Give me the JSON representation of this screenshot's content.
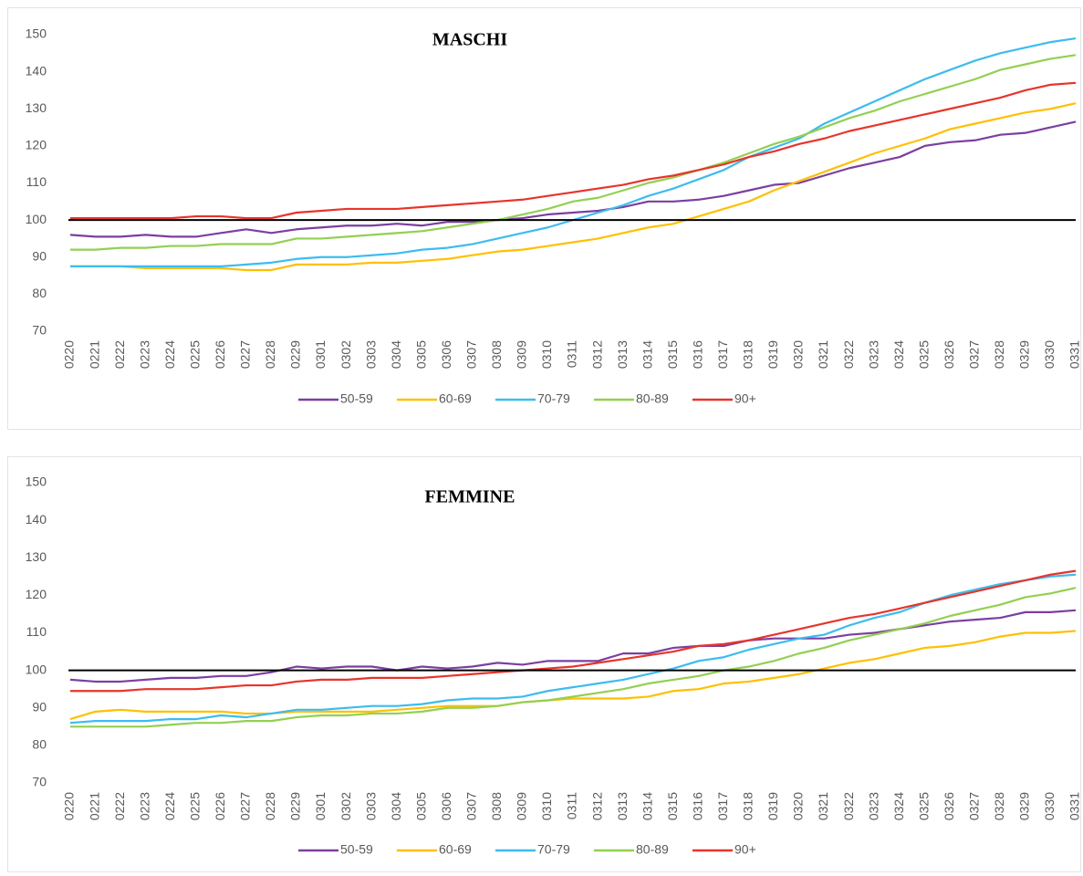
{
  "chart_data": [
    {
      "type": "line",
      "title": "MASCHI",
      "categories": [
        "0220",
        "0221",
        "0222",
        "0223",
        "0224",
        "0225",
        "0226",
        "0227",
        "0228",
        "0229",
        "0301",
        "0302",
        "0303",
        "0304",
        "0305",
        "0306",
        "0307",
        "0308",
        "0309",
        "0310",
        "0311",
        "0312",
        "0313",
        "0314",
        "0315",
        "0316",
        "0317",
        "0318",
        "0319",
        "0320",
        "0321",
        "0322",
        "0323",
        "0324",
        "0325",
        "0326",
        "0327",
        "0328",
        "0329",
        "0330",
        "0331"
      ],
      "ylim": [
        70,
        150
      ],
      "yticks": [
        70,
        80,
        90,
        100,
        110,
        120,
        130,
        140,
        150
      ],
      "hline": 100,
      "legend": "bottom",
      "series": [
        {
          "name": "50-59",
          "color": "#7b3fa0",
          "values": [
            96,
            95.5,
            95.5,
            96,
            95.5,
            95.5,
            96.5,
            97.5,
            96.5,
            97.5,
            98,
            98.5,
            98.5,
            99,
            98.5,
            99.5,
            99.5,
            100,
            100.5,
            101.5,
            102,
            102.5,
            103.5,
            105,
            105,
            105.5,
            106.5,
            108,
            109.5,
            110,
            112,
            114,
            115.5,
            117,
            120,
            121,
            121.5,
            123,
            123.5,
            125,
            126.5
          ]
        },
        {
          "name": "60-69",
          "color": "#ffc000",
          "values": [
            87.5,
            87.5,
            87.5,
            87,
            87,
            87,
            87,
            86.5,
            86.5,
            88,
            88,
            88,
            88.5,
            88.5,
            89,
            89.5,
            90.5,
            91.5,
            92,
            93,
            94,
            95,
            96.5,
            98,
            99,
            101,
            103,
            105,
            108,
            110.5,
            113,
            115.5,
            118,
            120,
            122,
            124.5,
            126,
            127.5,
            129,
            130,
            131.5
          ]
        },
        {
          "name": "70-79",
          "color": "#3cbcf0",
          "values": [
            87.5,
            87.5,
            87.5,
            87.5,
            87.5,
            87.5,
            87.5,
            88,
            88.5,
            89.5,
            90,
            90,
            90.5,
            91,
            92,
            92.5,
            93.5,
            95,
            96.5,
            98,
            100,
            102,
            104,
            106.5,
            108.5,
            111,
            113.5,
            117,
            119.5,
            122,
            126,
            129,
            132,
            135,
            138,
            140.5,
            143,
            145,
            146.5,
            148,
            149
          ]
        },
        {
          "name": "80-89",
          "color": "#92d050",
          "values": [
            92,
            92,
            92.5,
            92.5,
            93,
            93,
            93.5,
            93.5,
            93.5,
            95,
            95,
            95.5,
            96,
            96.5,
            97,
            98,
            99,
            100,
            101.5,
            103,
            105,
            106,
            108,
            110,
            111.5,
            113.5,
            115.5,
            118,
            120.5,
            122.5,
            125,
            127.5,
            129.5,
            132,
            134,
            136,
            138,
            140.5,
            142,
            143.5,
            144.5
          ]
        },
        {
          "name": "90+",
          "color": "#e8342a",
          "values": [
            100.5,
            100.5,
            100.5,
            100.5,
            100.5,
            101,
            101,
            100.5,
            100.5,
            102,
            102.5,
            103,
            103,
            103,
            103.5,
            104,
            104.5,
            105,
            105.5,
            106.5,
            107.5,
            108.5,
            109.5,
            111,
            112,
            113.5,
            115,
            117,
            118.5,
            120.5,
            122,
            124,
            125.5,
            127,
            128.5,
            130,
            131.5,
            133,
            135,
            136.5,
            137
          ]
        }
      ]
    },
    {
      "type": "line",
      "title": "FEMMINE",
      "categories": [
        "0220",
        "0221",
        "0222",
        "0223",
        "0224",
        "0225",
        "0226",
        "0227",
        "0228",
        "0229",
        "0301",
        "0302",
        "0303",
        "0304",
        "0305",
        "0306",
        "0307",
        "0308",
        "0309",
        "0310",
        "0311",
        "0312",
        "0313",
        "0314",
        "0315",
        "0316",
        "0317",
        "0318",
        "0319",
        "0320",
        "0321",
        "0322",
        "0323",
        "0324",
        "0325",
        "0326",
        "0327",
        "0328",
        "0329",
        "0330",
        "0331"
      ],
      "ylim": [
        70,
        150
      ],
      "yticks": [
        70,
        80,
        90,
        100,
        110,
        120,
        130,
        140,
        150
      ],
      "hline": 100,
      "legend": "bottom",
      "series": [
        {
          "name": "50-59",
          "color": "#7b3fa0",
          "values": [
            97.5,
            97,
            97,
            97.5,
            98,
            98,
            98.5,
            98.5,
            99.5,
            101,
            100.5,
            101,
            101,
            100,
            101,
            100.5,
            101,
            102,
            101.5,
            102.5,
            102.5,
            102.5,
            104.5,
            104.5,
            106,
            106.5,
            106.5,
            108,
            108.5,
            108.5,
            108.5,
            109.5,
            110,
            111,
            112,
            113,
            113.5,
            114,
            115.5,
            115.5,
            116
          ]
        },
        {
          "name": "60-69",
          "color": "#ffc000",
          "values": [
            87,
            89,
            89.5,
            89,
            89,
            89,
            89,
            88.5,
            88.5,
            89,
            89,
            89,
            89,
            89.5,
            90,
            90.5,
            90.5,
            90.5,
            91.5,
            92,
            92.5,
            92.5,
            92.5,
            93,
            94.5,
            95,
            96.5,
            97,
            98,
            99,
            100.5,
            102,
            103,
            104.5,
            106,
            106.5,
            107.5,
            109,
            110,
            110,
            110.5
          ]
        },
        {
          "name": "70-79",
          "color": "#3cbcf0",
          "values": [
            86,
            86.5,
            86.5,
            86.5,
            87,
            87,
            88,
            87.5,
            88.5,
            89.5,
            89.5,
            90,
            90.5,
            90.5,
            91,
            92,
            92.5,
            92.5,
            93,
            94.5,
            95.5,
            96.5,
            97.5,
            99,
            100.5,
            102.5,
            103.5,
            105.5,
            107,
            108.5,
            109.5,
            112,
            114,
            115.5,
            118,
            120,
            121.5,
            123,
            124,
            125,
            125.5
          ]
        },
        {
          "name": "80-89",
          "color": "#92d050",
          "values": [
            85,
            85,
            85,
            85,
            85.5,
            86,
            86,
            86.5,
            86.5,
            87.5,
            88,
            88,
            88.5,
            88.5,
            89,
            90,
            90,
            90.5,
            91.5,
            92,
            93,
            94,
            95,
            96.5,
            97.5,
            98.5,
            100,
            101,
            102.5,
            104.5,
            106,
            108,
            109.5,
            111,
            112.5,
            114.5,
            116,
            117.5,
            119.5,
            120.5,
            122
          ]
        },
        {
          "name": "90+",
          "color": "#e8342a",
          "values": [
            94.5,
            94.5,
            94.5,
            95,
            95,
            95,
            95.5,
            96,
            96,
            97,
            97.5,
            97.5,
            98,
            98,
            98,
            98.5,
            99,
            99.5,
            100,
            100.5,
            101,
            102,
            103,
            104,
            105,
            106.5,
            107,
            108,
            109.5,
            111,
            112.5,
            114,
            115,
            116.5,
            118,
            119.5,
            121,
            122.5,
            124,
            125.5,
            126.5
          ]
        }
      ]
    }
  ]
}
